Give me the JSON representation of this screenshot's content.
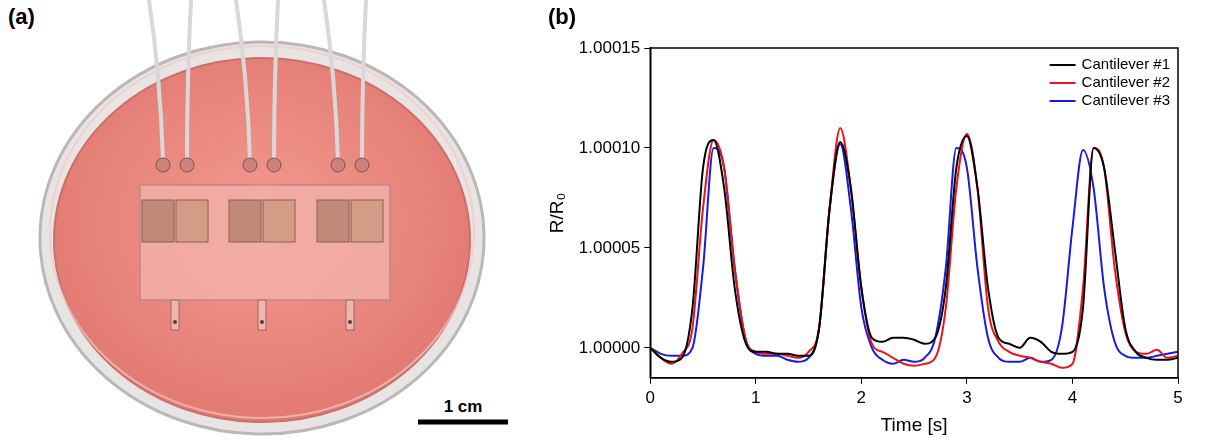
{
  "figure": {
    "panels": [
      {
        "label": "(a)",
        "scale_bar": "1 cm"
      },
      {
        "label": "(b)"
      }
    ]
  },
  "chart_data": {
    "type": "line",
    "x_label": "Time [s]",
    "y_label": "R/R₀",
    "x": [
      0,
      0.1,
      0.2,
      0.3,
      0.4,
      0.5,
      0.6,
      0.7,
      0.8,
      0.9,
      1,
      1.1,
      1.2,
      1.3,
      1.4,
      1.5,
      1.6,
      1.7,
      1.8,
      1.9,
      2,
      2.1,
      2.2,
      2.3,
      2.4,
      2.5,
      2.6,
      2.7,
      2.8,
      2.9,
      3,
      3.1,
      3.2,
      3.3,
      3.4,
      3.5,
      3.6,
      3.7,
      3.8,
      3.9,
      4,
      4.1,
      4.2,
      4.3,
      4.4,
      4.5,
      4.6,
      4.7,
      4.8,
      4.9,
      5
    ],
    "series": [
      {
        "name": "Cantilever #1",
        "color": "#000000",
        "values": [
          1.0,
          0.999995,
          0.999993,
          0.999995,
          1.00002,
          1.00009,
          1.000104,
          1.00008,
          1.00003,
          1.000003,
          0.999998,
          0.999998,
          0.999997,
          0.999997,
          0.999996,
          0.999996,
          1.00001,
          1.00007,
          1.000103,
          1.00008,
          1.00003,
          1.000005,
          1.000003,
          1.000005,
          1.000005,
          1.000004,
          1.000002,
          1.000005,
          1.00003,
          1.00009,
          1.000106,
          1.00008,
          1.00003,
          1.000005,
          1.000002,
          1.0,
          1.000005,
          1.000003,
          0.999998,
          0.999997,
          0.999998,
          1.00002,
          1.0001,
          1.00009,
          1.00005,
          1.00001,
          0.999998,
          0.999995,
          0.999994,
          0.999994,
          0.999995
        ]
      },
      {
        "name": "Cantilever #2",
        "color": "#e8141b",
        "values": [
          1.0,
          0.999995,
          0.999992,
          0.999997,
          1.00001,
          1.00007,
          1.000104,
          1.00009,
          1.00004,
          1.000005,
          0.999998,
          0.999997,
          0.999997,
          0.999996,
          0.999995,
          0.999998,
          1.00001,
          1.00007,
          1.00011,
          1.00008,
          1.00003,
          1.000002,
          0.999998,
          0.999995,
          0.999992,
          0.999991,
          0.999992,
          0.999995,
          1.00002,
          1.00008,
          1.000107,
          1.00008,
          1.00002,
          1.000003,
          0.999998,
          0.999996,
          0.999995,
          0.999993,
          0.999992,
          0.99999,
          0.999992,
          1.00003,
          1.0001,
          1.00009,
          1.00004,
          1.000008,
          0.999998,
          0.999997,
          0.999999,
          0.999995,
          0.999996
        ]
      },
      {
        "name": "Cantilever #3",
        "color": "#1a1ae0",
        "values": [
          1.0,
          0.999997,
          0.999996,
          0.999996,
          1.0,
          1.00004,
          1.0001,
          1.00009,
          1.00004,
          1.000005,
          0.999997,
          0.999996,
          0.999996,
          0.999994,
          0.999993,
          0.999995,
          1.00001,
          1.00007,
          1.000102,
          1.00007,
          1.00002,
          1.0,
          0.999994,
          0.999992,
          0.999994,
          0.999993,
          0.999995,
          1.000005,
          1.00004,
          1.0001,
          1.00009,
          1.00004,
          1.000005,
          0.999995,
          0.999993,
          0.999993,
          0.999995,
          0.999993,
          0.999994,
          1.00001,
          1.00006,
          1.000099,
          1.00008,
          1.00003,
          1.000003,
          0.999996,
          0.999995,
          0.999995,
          0.999996,
          0.999997,
          0.999998
        ]
      }
    ],
    "xlim": [
      0,
      5
    ],
    "xticks": [
      0,
      1,
      2,
      3,
      4,
      5
    ],
    "ylim": [
      0.999985,
      1.00015
    ],
    "yticks": [
      {
        "value": 1.0,
        "label": "1.00000"
      },
      {
        "value": 1.00005,
        "label": "1.00005"
      },
      {
        "value": 1.0001,
        "label": "1.00010"
      },
      {
        "value": 1.00015,
        "label": "1.00015"
      }
    ],
    "grid": false,
    "legend": "upper right"
  }
}
